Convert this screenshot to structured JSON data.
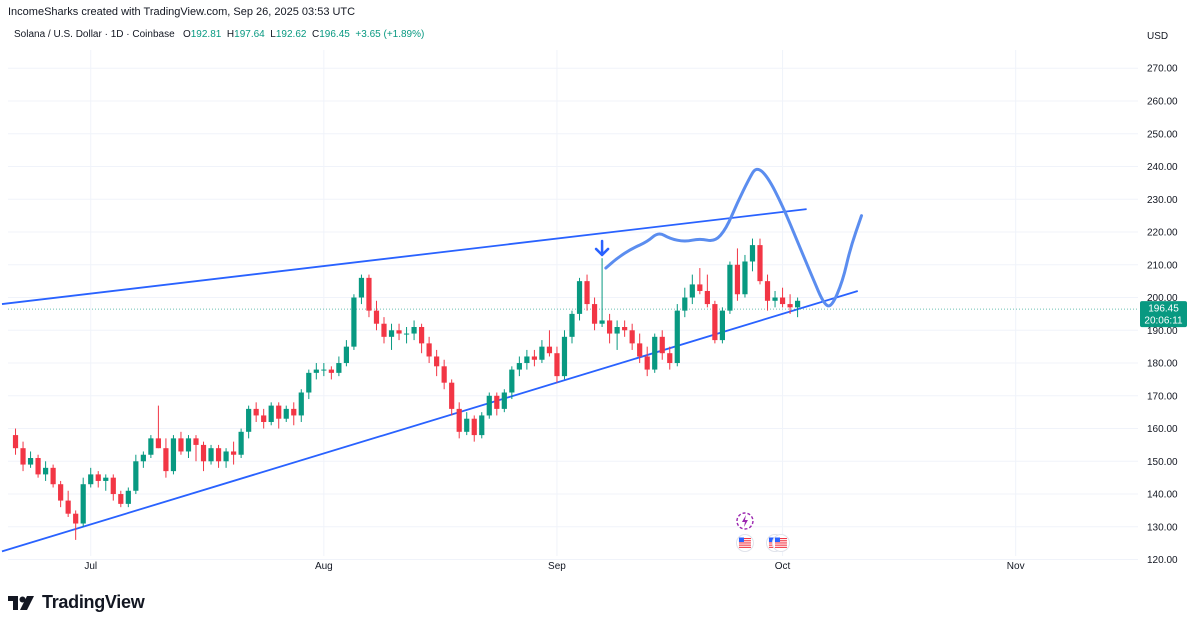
{
  "header": {
    "credit": "IncomeSharks created with TradingView.com, Sep 26, 2025 03:53 UTC",
    "symbol": "Solana / U.S. Dollar · 1D · Coinbase",
    "o_label": "O",
    "o_value": "192.81",
    "h_label": "H",
    "h_value": "197.64",
    "l_label": "L",
    "l_value": "192.62",
    "c_label": "C",
    "c_value": "196.45",
    "change": "+3.65 (+1.89%)",
    "currency": "USD"
  },
  "brand": {
    "name": "TradingView",
    "logo_icon": "tradingview-logo-icon"
  },
  "colors": {
    "up": "#089981",
    "down": "#f23645",
    "trendline": "#2962ff",
    "drawing": "#5b8def",
    "price_tag": "#089981"
  },
  "chart_data": {
    "type": "candlestick",
    "symbol": "SOLUSD",
    "timeframe": "1D",
    "y_axis": {
      "min": 120,
      "max": 270,
      "ticks": [
        "120.00",
        "130.00",
        "140.00",
        "150.00",
        "160.00",
        "170.00",
        "180.00",
        "190.00",
        "200.00",
        "210.00",
        "220.00",
        "230.00",
        "240.00",
        "250.00",
        "260.00",
        "270.00"
      ]
    },
    "x_axis": {
      "labels": [
        {
          "label": "Jul",
          "date": "2025-07-01"
        },
        {
          "label": "Aug",
          "date": "2025-08-01"
        },
        {
          "label": "Sep",
          "date": "2025-09-01"
        },
        {
          "label": "Oct",
          "date": "2025-10-01"
        },
        {
          "label": "Nov",
          "date": "2025-11-01"
        }
      ]
    },
    "last_price": {
      "value": "196.45",
      "countdown": "20:06:11"
    },
    "candles": [
      [
        "2025-06-21",
        158,
        160,
        152,
        154
      ],
      [
        "2025-06-22",
        154,
        156,
        147,
        149
      ],
      [
        "2025-06-23",
        149,
        153,
        148,
        151
      ],
      [
        "2025-06-24",
        151,
        152,
        145,
        146
      ],
      [
        "2025-06-25",
        146,
        150,
        144,
        148
      ],
      [
        "2025-06-26",
        148,
        149,
        142,
        143
      ],
      [
        "2025-06-27",
        143,
        144,
        136,
        138
      ],
      [
        "2025-06-28",
        138,
        141,
        133,
        134
      ],
      [
        "2025-06-29",
        134,
        135,
        126,
        131
      ],
      [
        "2025-06-30",
        131,
        145,
        130,
        143
      ],
      [
        "2025-07-01",
        143,
        148,
        142,
        146
      ],
      [
        "2025-07-02",
        146,
        147,
        142,
        144
      ],
      [
        "2025-07-03",
        144,
        146,
        141,
        145
      ],
      [
        "2025-07-04",
        145,
        146,
        138,
        140
      ],
      [
        "2025-07-05",
        140,
        141,
        136,
        137
      ],
      [
        "2025-07-06",
        137,
        142,
        136,
        141
      ],
      [
        "2025-07-07",
        141,
        152,
        140,
        150
      ],
      [
        "2025-07-08",
        150,
        153,
        148,
        152
      ],
      [
        "2025-07-09",
        152,
        158,
        151,
        157
      ],
      [
        "2025-07-10",
        157,
        167,
        154,
        154
      ],
      [
        "2025-07-11",
        154,
        157,
        145,
        147
      ],
      [
        "2025-07-12",
        147,
        158,
        146,
        157
      ],
      [
        "2025-07-13",
        157,
        159,
        152,
        153
      ],
      [
        "2025-07-14",
        153,
        158,
        151,
        157
      ],
      [
        "2025-07-15",
        157,
        158,
        150,
        155
      ],
      [
        "2025-07-16",
        155,
        156,
        147,
        150
      ],
      [
        "2025-07-17",
        150,
        155,
        149,
        154
      ],
      [
        "2025-07-18",
        154,
        155,
        148,
        150
      ],
      [
        "2025-07-19",
        150,
        154,
        148,
        153
      ],
      [
        "2025-07-20",
        153,
        156,
        149,
        152
      ],
      [
        "2025-07-21",
        152,
        160,
        151,
        159
      ],
      [
        "2025-07-22",
        159,
        167,
        157,
        166
      ],
      [
        "2025-07-23",
        166,
        168,
        162,
        164
      ],
      [
        "2025-07-24",
        164,
        166,
        160,
        162
      ],
      [
        "2025-07-25",
        162,
        168,
        161,
        167
      ],
      [
        "2025-07-26",
        167,
        168,
        160,
        163
      ],
      [
        "2025-07-27",
        163,
        167,
        162,
        166
      ],
      [
        "2025-07-28",
        166,
        168,
        161,
        164
      ],
      [
        "2025-07-29",
        164,
        172,
        162,
        171
      ],
      [
        "2025-07-30",
        171,
        178,
        169,
        177
      ],
      [
        "2025-07-31",
        177,
        180,
        175,
        178
      ],
      [
        "2025-08-01",
        178,
        180,
        176,
        178
      ],
      [
        "2025-08-02",
        178,
        179,
        175,
        177
      ],
      [
        "2025-08-03",
        177,
        182,
        176,
        180
      ],
      [
        "2025-08-04",
        180,
        187,
        179,
        185
      ],
      [
        "2025-08-05",
        185,
        201,
        184,
        200
      ],
      [
        "2025-08-06",
        200,
        207,
        198,
        206
      ],
      [
        "2025-08-07",
        206,
        207,
        194,
        196
      ],
      [
        "2025-08-08",
        196,
        199,
        190,
        192
      ],
      [
        "2025-08-09",
        192,
        194,
        186,
        188
      ],
      [
        "2025-08-10",
        188,
        192,
        184,
        190
      ],
      [
        "2025-08-11",
        190,
        192,
        187,
        189
      ],
      [
        "2025-08-12",
        189,
        191,
        186,
        189
      ],
      [
        "2025-08-13",
        189,
        193,
        187,
        191
      ],
      [
        "2025-08-14",
        191,
        192,
        183,
        186
      ],
      [
        "2025-08-15",
        186,
        188,
        180,
        182
      ],
      [
        "2025-08-16",
        182,
        184,
        176,
        179
      ],
      [
        "2025-08-17",
        179,
        181,
        172,
        174
      ],
      [
        "2025-08-18",
        174,
        175,
        164,
        166
      ],
      [
        "2025-08-19",
        166,
        168,
        157,
        159
      ],
      [
        "2025-08-20",
        159,
        165,
        158,
        163
      ],
      [
        "2025-08-21",
        163,
        164,
        156,
        158
      ],
      [
        "2025-08-22",
        158,
        165,
        157,
        164
      ],
      [
        "2025-08-23",
        164,
        171,
        163,
        170
      ],
      [
        "2025-08-24",
        170,
        171,
        164,
        166
      ],
      [
        "2025-08-25",
        166,
        172,
        165,
        171
      ],
      [
        "2025-08-26",
        171,
        179,
        169,
        178
      ],
      [
        "2025-08-27",
        178,
        182,
        176,
        180
      ],
      [
        "2025-08-28",
        180,
        184,
        178,
        182
      ],
      [
        "2025-08-29",
        182,
        184,
        179,
        181
      ],
      [
        "2025-08-30",
        181,
        187,
        180,
        185
      ],
      [
        "2025-08-31",
        185,
        190,
        182,
        183
      ],
      [
        "2025-09-01",
        183,
        185,
        174,
        176
      ],
      [
        "2025-09-02",
        176,
        190,
        175,
        188
      ],
      [
        "2025-09-03",
        188,
        196,
        186,
        195
      ],
      [
        "2025-09-04",
        195,
        206,
        193,
        205
      ],
      [
        "2025-09-05",
        205,
        207,
        196,
        198
      ],
      [
        "2025-09-06",
        198,
        200,
        190,
        192
      ],
      [
        "2025-09-07",
        192,
        212,
        191,
        193
      ],
      [
        "2025-09-08",
        193,
        195,
        186,
        189
      ],
      [
        "2025-09-09",
        189,
        193,
        184,
        191
      ],
      [
        "2025-09-10",
        191,
        193,
        188,
        190
      ],
      [
        "2025-09-11",
        190,
        192,
        184,
        186
      ],
      [
        "2025-09-12",
        186,
        189,
        180,
        182
      ],
      [
        "2025-09-13",
        182,
        185,
        176,
        178
      ],
      [
        "2025-09-14",
        178,
        189,
        177,
        188
      ],
      [
        "2025-09-15",
        188,
        190,
        181,
        183
      ],
      [
        "2025-09-16",
        183,
        185,
        178,
        180
      ],
      [
        "2025-09-17",
        180,
        198,
        179,
        196
      ],
      [
        "2025-09-18",
        196,
        203,
        194,
        200
      ],
      [
        "2025-09-19",
        200,
        207,
        198,
        204
      ],
      [
        "2025-09-20",
        204,
        209,
        201,
        202
      ],
      [
        "2025-09-21",
        202,
        207,
        197,
        198
      ],
      [
        "2025-09-22",
        198,
        199,
        186,
        187
      ],
      [
        "2025-09-23",
        187,
        197,
        186,
        196
      ],
      [
        "2025-09-24",
        196,
        211,
        195,
        210
      ],
      [
        "2025-09-25",
        210,
        215,
        199,
        201
      ],
      [
        "2025-09-26",
        201,
        213,
        200,
        211
      ],
      [
        "2025-09-27",
        211,
        218,
        208,
        216
      ],
      [
        "2025-09-28",
        216,
        218,
        204,
        205
      ],
      [
        "2025-09-29",
        205,
        207,
        196,
        199
      ],
      [
        "2025-09-30",
        199,
        202,
        197,
        200
      ],
      [
        "2025-10-01",
        200,
        203,
        197,
        198
      ],
      [
        "2025-10-02",
        198,
        201,
        195,
        197
      ],
      [
        "2025-10-03",
        197,
        200,
        194,
        199
      ]
    ]
  }
}
